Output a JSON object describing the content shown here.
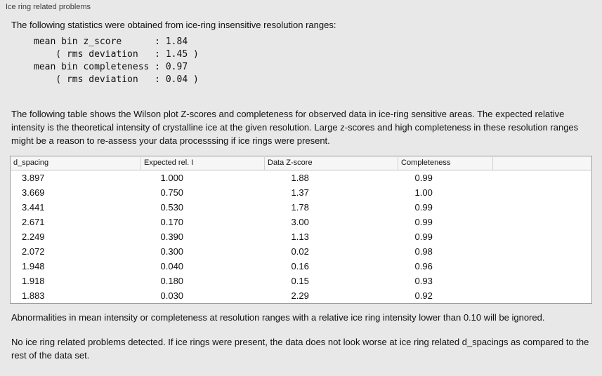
{
  "panel": {
    "title": "Ice ring related problems"
  },
  "intro": "The following statistics were obtained from ice-ring insensitive resolution ranges:",
  "stats_block": "mean bin z_score      : 1.84\n    ( rms deviation   : 1.45 )\nmean bin completeness : 0.97\n    ( rms deviation   : 0.04 )",
  "table_intro": "The following table shows the Wilson plot Z-scores and completeness for observed data in ice-ring sensitive areas. The expected relative intensity is the theoretical intensity of crystalline ice at the given resolution. Large z-scores and high completeness in these resolution ranges might be a reason to re-assess your data processsing if ice rings were present.",
  "table": {
    "headers": [
      "d_spacing",
      "Expected rel. I",
      "Data Z-score",
      "Completeness"
    ],
    "rows": [
      [
        "3.897",
        "1.000",
        "1.88",
        "0.99"
      ],
      [
        "3.669",
        "0.750",
        "1.37",
        "1.00"
      ],
      [
        "3.441",
        "0.530",
        "1.78",
        "0.99"
      ],
      [
        "2.671",
        "0.170",
        "3.00",
        "0.99"
      ],
      [
        "2.249",
        "0.390",
        "1.13",
        "0.99"
      ],
      [
        "2.072",
        "0.300",
        "0.02",
        "0.98"
      ],
      [
        "1.948",
        "0.040",
        "0.16",
        "0.96"
      ],
      [
        "1.918",
        "0.180",
        "0.15",
        "0.93"
      ],
      [
        "1.883",
        "0.030",
        "2.29",
        "0.92"
      ]
    ]
  },
  "note_ignore": "Abnormalities in mean intensity or completeness at resolution ranges with a relative ice ring intensity lower than 0.10 will be ignored.",
  "conclusion": "No ice ring related problems detected. If ice rings were present, the data does not look worse at ice ring related d_spacings as compared to the rest of the data set."
}
